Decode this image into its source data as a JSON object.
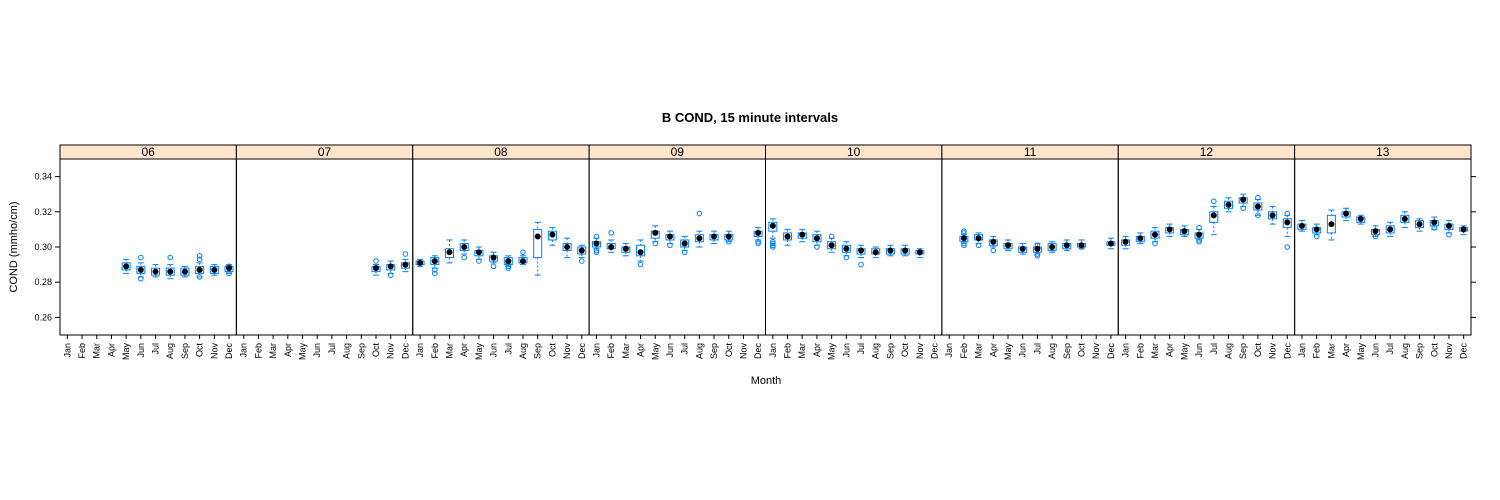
{
  "chart_data": {
    "type": "boxplot",
    "title": "B COND, 15 minute intervals",
    "xlabel": "Month",
    "ylabel": "COND (mmho/cm)",
    "ylim": [
      0.25,
      0.35
    ],
    "yticks": [
      0.26,
      0.28,
      0.3,
      0.32,
      0.34
    ],
    "ytick_labels": [
      "0.26",
      "0.28",
      "0.30",
      "0.32",
      "0.34"
    ],
    "categories": [
      "Jan",
      "Feb",
      "Mar",
      "Apr",
      "May",
      "Jun",
      "Jul",
      "Aug",
      "Sep",
      "Oct",
      "Nov",
      "Dec"
    ],
    "strip_color": "#ffe5cc",
    "box_color": "#0080ff",
    "median_color": "#000000",
    "panels": [
      {
        "label": "06",
        "boxes": [
          {
            "m": 5,
            "med": 0.289,
            "q1": 0.287,
            "q3": 0.291,
            "lo": 0.285,
            "hi": 0.293,
            "out": []
          },
          {
            "m": 6,
            "med": 0.287,
            "q1": 0.285,
            "q3": 0.289,
            "lo": 0.283,
            "hi": 0.291,
            "out": [
              0.294,
              0.282
            ]
          },
          {
            "m": 7,
            "med": 0.286,
            "q1": 0.284,
            "q3": 0.288,
            "lo": 0.283,
            "hi": 0.29,
            "out": []
          },
          {
            "m": 8,
            "med": 0.286,
            "q1": 0.284,
            "q3": 0.288,
            "lo": 0.282,
            "hi": 0.29,
            "out": [
              0.294
            ]
          },
          {
            "m": 9,
            "med": 0.286,
            "q1": 0.284,
            "q3": 0.288,
            "lo": 0.283,
            "hi": 0.289,
            "out": []
          },
          {
            "m": 10,
            "med": 0.287,
            "q1": 0.285,
            "q3": 0.289,
            "lo": 0.283,
            "hi": 0.291,
            "out": [
              0.295,
              0.293,
              0.283
            ]
          },
          {
            "m": 11,
            "med": 0.287,
            "q1": 0.285,
            "q3": 0.289,
            "lo": 0.284,
            "hi": 0.29,
            "out": []
          },
          {
            "m": 12,
            "med": 0.288,
            "q1": 0.286,
            "q3": 0.289,
            "lo": 0.285,
            "hi": 0.29,
            "out": [
              0.289,
              0.285
            ]
          }
        ]
      },
      {
        "label": "07",
        "boxes": [
          {
            "m": 10,
            "med": 0.288,
            "q1": 0.286,
            "q3": 0.289,
            "lo": 0.284,
            "hi": 0.29,
            "out": [
              0.292
            ]
          },
          {
            "m": 11,
            "med": 0.289,
            "q1": 0.287,
            "q3": 0.29,
            "lo": 0.285,
            "hi": 0.292,
            "out": [
              0.284
            ]
          },
          {
            "m": 12,
            "med": 0.29,
            "q1": 0.288,
            "q3": 0.291,
            "lo": 0.286,
            "hi": 0.293,
            "out": [
              0.296
            ]
          }
        ]
      },
      {
        "label": "08",
        "boxes": [
          {
            "m": 1,
            "med": 0.291,
            "q1": 0.29,
            "q3": 0.292,
            "lo": 0.289,
            "hi": 0.293,
            "out": []
          },
          {
            "m": 2,
            "med": 0.292,
            "q1": 0.29,
            "q3": 0.294,
            "lo": 0.288,
            "hi": 0.295,
            "out": [
              0.285,
              0.287
            ]
          },
          {
            "m": 3,
            "med": 0.297,
            "q1": 0.294,
            "q3": 0.299,
            "lo": 0.291,
            "hi": 0.304,
            "out": []
          },
          {
            "m": 4,
            "med": 0.3,
            "q1": 0.298,
            "q3": 0.302,
            "lo": 0.296,
            "hi": 0.304,
            "out": [
              0.294
            ]
          },
          {
            "m": 5,
            "med": 0.297,
            "q1": 0.295,
            "q3": 0.298,
            "lo": 0.293,
            "hi": 0.3,
            "out": [
              0.292
            ]
          },
          {
            "m": 6,
            "med": 0.294,
            "q1": 0.292,
            "q3": 0.295,
            "lo": 0.291,
            "hi": 0.297,
            "out": [
              0.289
            ]
          },
          {
            "m": 7,
            "med": 0.292,
            "q1": 0.29,
            "q3": 0.294,
            "lo": 0.289,
            "hi": 0.295,
            "out": [
              0.288,
              0.289,
              0.291
            ]
          },
          {
            "m": 8,
            "med": 0.292,
            "q1": 0.291,
            "q3": 0.294,
            "lo": 0.29,
            "hi": 0.295,
            "out": [
              0.297
            ]
          },
          {
            "m": 9,
            "med": 0.306,
            "q1": 0.294,
            "q3": 0.31,
            "lo": 0.284,
            "hi": 0.314,
            "out": []
          },
          {
            "m": 10,
            "med": 0.307,
            "q1": 0.304,
            "q3": 0.309,
            "lo": 0.301,
            "hi": 0.311,
            "out": []
          },
          {
            "m": 11,
            "med": 0.3,
            "q1": 0.298,
            "q3": 0.302,
            "lo": 0.294,
            "hi": 0.305,
            "out": []
          },
          {
            "m": 12,
            "med": 0.298,
            "q1": 0.296,
            "q3": 0.3,
            "lo": 0.294,
            "hi": 0.301,
            "out": [
              0.292
            ]
          }
        ]
      },
      {
        "label": "09",
        "boxes": [
          {
            "m": 1,
            "med": 0.302,
            "q1": 0.3,
            "q3": 0.303,
            "lo": 0.299,
            "hi": 0.305,
            "out": [
              0.306,
              0.298,
              0.297
            ]
          },
          {
            "m": 2,
            "med": 0.3,
            "q1": 0.299,
            "q3": 0.302,
            "lo": 0.297,
            "hi": 0.304,
            "out": [
              0.308
            ]
          },
          {
            "m": 3,
            "med": 0.299,
            "q1": 0.297,
            "q3": 0.3,
            "lo": 0.295,
            "hi": 0.302,
            "out": []
          },
          {
            "m": 4,
            "med": 0.297,
            "q1": 0.295,
            "q3": 0.301,
            "lo": 0.292,
            "hi": 0.304,
            "out": [
              0.29
            ]
          },
          {
            "m": 5,
            "med": 0.308,
            "q1": 0.305,
            "q3": 0.309,
            "lo": 0.303,
            "hi": 0.312,
            "out": [
              0.302
            ]
          },
          {
            "m": 6,
            "med": 0.306,
            "q1": 0.304,
            "q3": 0.307,
            "lo": 0.302,
            "hi": 0.309,
            "out": [
              0.301
            ]
          },
          {
            "m": 7,
            "med": 0.302,
            "q1": 0.3,
            "q3": 0.304,
            "lo": 0.298,
            "hi": 0.306,
            "out": [
              0.297
            ]
          },
          {
            "m": 8,
            "med": 0.305,
            "q1": 0.303,
            "q3": 0.307,
            "lo": 0.3,
            "hi": 0.309,
            "out": [
              0.319
            ]
          },
          {
            "m": 9,
            "med": 0.306,
            "q1": 0.304,
            "q3": 0.307,
            "lo": 0.302,
            "hi": 0.309,
            "out": []
          },
          {
            "m": 10,
            "med": 0.306,
            "q1": 0.304,
            "q3": 0.307,
            "lo": 0.303,
            "hi": 0.309,
            "out": [
              0.303
            ]
          },
          {
            "m": 12,
            "med": 0.308,
            "q1": 0.306,
            "q3": 0.309,
            "lo": 0.304,
            "hi": 0.311,
            "out": [
              0.302,
              0.303
            ]
          }
        ]
      },
      {
        "label": "10",
        "boxes": [
          {
            "m": 1,
            "med": 0.312,
            "q1": 0.309,
            "q3": 0.314,
            "lo": 0.305,
            "hi": 0.316,
            "out": [
              0.303,
              0.302,
              0.301,
              0.3
            ]
          },
          {
            "m": 2,
            "med": 0.306,
            "q1": 0.304,
            "q3": 0.308,
            "lo": 0.301,
            "hi": 0.31,
            "out": []
          },
          {
            "m": 3,
            "med": 0.307,
            "q1": 0.305,
            "q3": 0.308,
            "lo": 0.303,
            "hi": 0.31,
            "out": []
          },
          {
            "m": 4,
            "med": 0.305,
            "q1": 0.303,
            "q3": 0.307,
            "lo": 0.301,
            "hi": 0.309,
            "out": [
              0.3
            ]
          },
          {
            "m": 5,
            "med": 0.301,
            "q1": 0.299,
            "q3": 0.303,
            "lo": 0.297,
            "hi": 0.305,
            "out": [
              0.306
            ]
          },
          {
            "m": 6,
            "med": 0.299,
            "q1": 0.297,
            "q3": 0.301,
            "lo": 0.295,
            "hi": 0.303,
            "out": [
              0.294
            ]
          },
          {
            "m": 7,
            "med": 0.298,
            "q1": 0.296,
            "q3": 0.299,
            "lo": 0.294,
            "hi": 0.301,
            "out": [
              0.29
            ]
          },
          {
            "m": 8,
            "med": 0.297,
            "q1": 0.296,
            "q3": 0.299,
            "lo": 0.294,
            "hi": 0.3,
            "out": []
          },
          {
            "m": 9,
            "med": 0.298,
            "q1": 0.296,
            "q3": 0.299,
            "lo": 0.295,
            "hi": 0.301,
            "out": []
          },
          {
            "m": 10,
            "med": 0.298,
            "q1": 0.296,
            "q3": 0.299,
            "lo": 0.295,
            "hi": 0.301,
            "out": []
          },
          {
            "m": 11,
            "med": 0.297,
            "q1": 0.296,
            "q3": 0.298,
            "lo": 0.294,
            "hi": 0.299,
            "out": []
          }
        ]
      },
      {
        "label": "11",
        "boxes": [
          {
            "m": 2,
            "med": 0.305,
            "q1": 0.303,
            "q3": 0.306,
            "lo": 0.302,
            "hi": 0.307,
            "out": [
              0.309,
              0.308,
              0.302,
              0.301
            ]
          },
          {
            "m": 3,
            "med": 0.305,
            "q1": 0.304,
            "q3": 0.307,
            "lo": 0.302,
            "hi": 0.308,
            "out": [
              0.301
            ]
          },
          {
            "m": 4,
            "med": 0.303,
            "q1": 0.301,
            "q3": 0.304,
            "lo": 0.3,
            "hi": 0.306,
            "out": [
              0.298
            ]
          },
          {
            "m": 5,
            "med": 0.301,
            "q1": 0.299,
            "q3": 0.302,
            "lo": 0.298,
            "hi": 0.304,
            "out": []
          },
          {
            "m": 6,
            "med": 0.299,
            "q1": 0.297,
            "q3": 0.3,
            "lo": 0.296,
            "hi": 0.302,
            "out": []
          },
          {
            "m": 7,
            "med": 0.299,
            "q1": 0.297,
            "q3": 0.3,
            "lo": 0.296,
            "hi": 0.302,
            "out": [
              0.295,
              0.296,
              0.301
            ]
          },
          {
            "m": 8,
            "med": 0.3,
            "q1": 0.298,
            "q3": 0.302,
            "lo": 0.297,
            "hi": 0.303,
            "out": []
          },
          {
            "m": 9,
            "med": 0.301,
            "q1": 0.299,
            "q3": 0.302,
            "lo": 0.298,
            "hi": 0.304,
            "out": []
          },
          {
            "m": 10,
            "med": 0.301,
            "q1": 0.3,
            "q3": 0.302,
            "lo": 0.299,
            "hi": 0.304,
            "out": [
              0.3
            ]
          },
          {
            "m": 12,
            "med": 0.302,
            "q1": 0.301,
            "q3": 0.303,
            "lo": 0.299,
            "hi": 0.305,
            "out": []
          }
        ]
      },
      {
        "label": "12",
        "boxes": [
          {
            "m": 1,
            "med": 0.303,
            "q1": 0.301,
            "q3": 0.304,
            "lo": 0.299,
            "hi": 0.306,
            "out": []
          },
          {
            "m": 2,
            "med": 0.305,
            "q1": 0.303,
            "q3": 0.306,
            "lo": 0.302,
            "hi": 0.308,
            "out": []
          },
          {
            "m": 3,
            "med": 0.307,
            "q1": 0.305,
            "q3": 0.309,
            "lo": 0.303,
            "hi": 0.311,
            "out": [
              0.302
            ]
          },
          {
            "m": 4,
            "med": 0.31,
            "q1": 0.308,
            "q3": 0.311,
            "lo": 0.306,
            "hi": 0.313,
            "out": []
          },
          {
            "m": 5,
            "med": 0.309,
            "q1": 0.307,
            "q3": 0.31,
            "lo": 0.306,
            "hi": 0.312,
            "out": []
          },
          {
            "m": 6,
            "med": 0.307,
            "q1": 0.305,
            "q3": 0.308,
            "lo": 0.304,
            "hi": 0.31,
            "out": [
              0.311,
              0.304,
              0.303
            ]
          },
          {
            "m": 7,
            "med": 0.318,
            "q1": 0.314,
            "q3": 0.32,
            "lo": 0.307,
            "hi": 0.323,
            "out": [
              0.326
            ]
          },
          {
            "m": 8,
            "med": 0.324,
            "q1": 0.322,
            "q3": 0.326,
            "lo": 0.32,
            "hi": 0.328,
            "out": []
          },
          {
            "m": 9,
            "med": 0.327,
            "q1": 0.325,
            "q3": 0.328,
            "lo": 0.323,
            "hi": 0.33,
            "out": [
              0.322
            ]
          },
          {
            "m": 10,
            "med": 0.323,
            "q1": 0.321,
            "q3": 0.325,
            "lo": 0.318,
            "hi": 0.327,
            "out": [
              0.328,
              0.318
            ]
          },
          {
            "m": 11,
            "med": 0.318,
            "q1": 0.316,
            "q3": 0.32,
            "lo": 0.313,
            "hi": 0.323,
            "out": []
          },
          {
            "m": 12,
            "med": 0.314,
            "q1": 0.311,
            "q3": 0.316,
            "lo": 0.306,
            "hi": 0.318,
            "out": [
              0.3,
              0.319
            ]
          }
        ]
      },
      {
        "label": "13",
        "boxes": [
          {
            "m": 1,
            "med": 0.312,
            "q1": 0.31,
            "q3": 0.313,
            "lo": 0.309,
            "hi": 0.315,
            "out": []
          },
          {
            "m": 2,
            "med": 0.31,
            "q1": 0.308,
            "q3": 0.311,
            "lo": 0.307,
            "hi": 0.313,
            "out": [
              0.306
            ]
          },
          {
            "m": 3,
            "med": 0.313,
            "q1": 0.308,
            "q3": 0.318,
            "lo": 0.304,
            "hi": 0.321,
            "out": []
          },
          {
            "m": 4,
            "med": 0.319,
            "q1": 0.317,
            "q3": 0.32,
            "lo": 0.315,
            "hi": 0.322,
            "out": []
          },
          {
            "m": 5,
            "med": 0.316,
            "q1": 0.314,
            "q3": 0.317,
            "lo": 0.313,
            "hi": 0.318,
            "out": []
          },
          {
            "m": 6,
            "med": 0.309,
            "q1": 0.307,
            "q3": 0.31,
            "lo": 0.306,
            "hi": 0.312,
            "out": [
              0.306
            ]
          },
          {
            "m": 7,
            "med": 0.31,
            "q1": 0.308,
            "q3": 0.312,
            "lo": 0.306,
            "hi": 0.314,
            "out": []
          },
          {
            "m": 8,
            "med": 0.316,
            "q1": 0.314,
            "q3": 0.318,
            "lo": 0.311,
            "hi": 0.32,
            "out": []
          },
          {
            "m": 9,
            "med": 0.313,
            "q1": 0.311,
            "q3": 0.315,
            "lo": 0.309,
            "hi": 0.316,
            "out": []
          },
          {
            "m": 10,
            "med": 0.314,
            "q1": 0.312,
            "q3": 0.315,
            "lo": 0.31,
            "hi": 0.317,
            "out": [
              0.311
            ]
          },
          {
            "m": 11,
            "med": 0.312,
            "q1": 0.31,
            "q3": 0.313,
            "lo": 0.308,
            "hi": 0.315,
            "out": [
              0.307
            ]
          },
          {
            "m": 12,
            "med": 0.31,
            "q1": 0.309,
            "q3": 0.311,
            "lo": 0.307,
            "hi": 0.312,
            "out": []
          }
        ]
      }
    ]
  }
}
